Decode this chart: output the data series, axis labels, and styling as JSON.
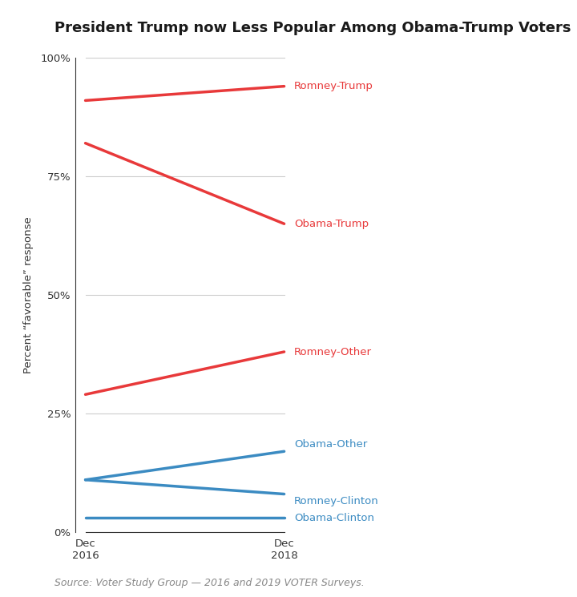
{
  "title": "President Trump now Less Popular Among Obama-Trump Voters",
  "xlabel_ticks": [
    "Dec\n2016",
    "Dec\n2018"
  ],
  "x_values": [
    0,
    1
  ],
  "ylabel": "Percent “favorable” response",
  "source": "Source: Voter Study Group — 2016 and 2019 VOTER Surveys.",
  "series": [
    {
      "label": "Romney-Trump",
      "color": "#e8393a",
      "values": [
        91,
        94
      ]
    },
    {
      "label": "Obama-Trump",
      "color": "#e8393a",
      "values": [
        82,
        65
      ]
    },
    {
      "label": "Romney-Other",
      "color": "#e8393a",
      "values": [
        29,
        38
      ]
    },
    {
      "label": "Obama-Other",
      "color": "#3b8bc2",
      "values": [
        11,
        17
      ]
    },
    {
      "label": "Romney-Clinton",
      "color": "#3b8bc2",
      "values": [
        11,
        8
      ]
    },
    {
      "label": "Obama-Clinton",
      "color": "#3b8bc2",
      "values": [
        3,
        3
      ]
    }
  ],
  "ylim": [
    0,
    100
  ],
  "yticks": [
    0,
    25,
    50,
    75,
    100
  ],
  "ytick_labels": [
    "0%",
    "25%",
    "50%",
    "75%",
    "100%"
  ],
  "background_color": "#ffffff",
  "grid_color": "#cccccc",
  "title_fontsize": 13,
  "label_fontsize": 9.5,
  "axis_fontsize": 9.5,
  "source_fontsize": 9,
  "line_width": 2.5
}
